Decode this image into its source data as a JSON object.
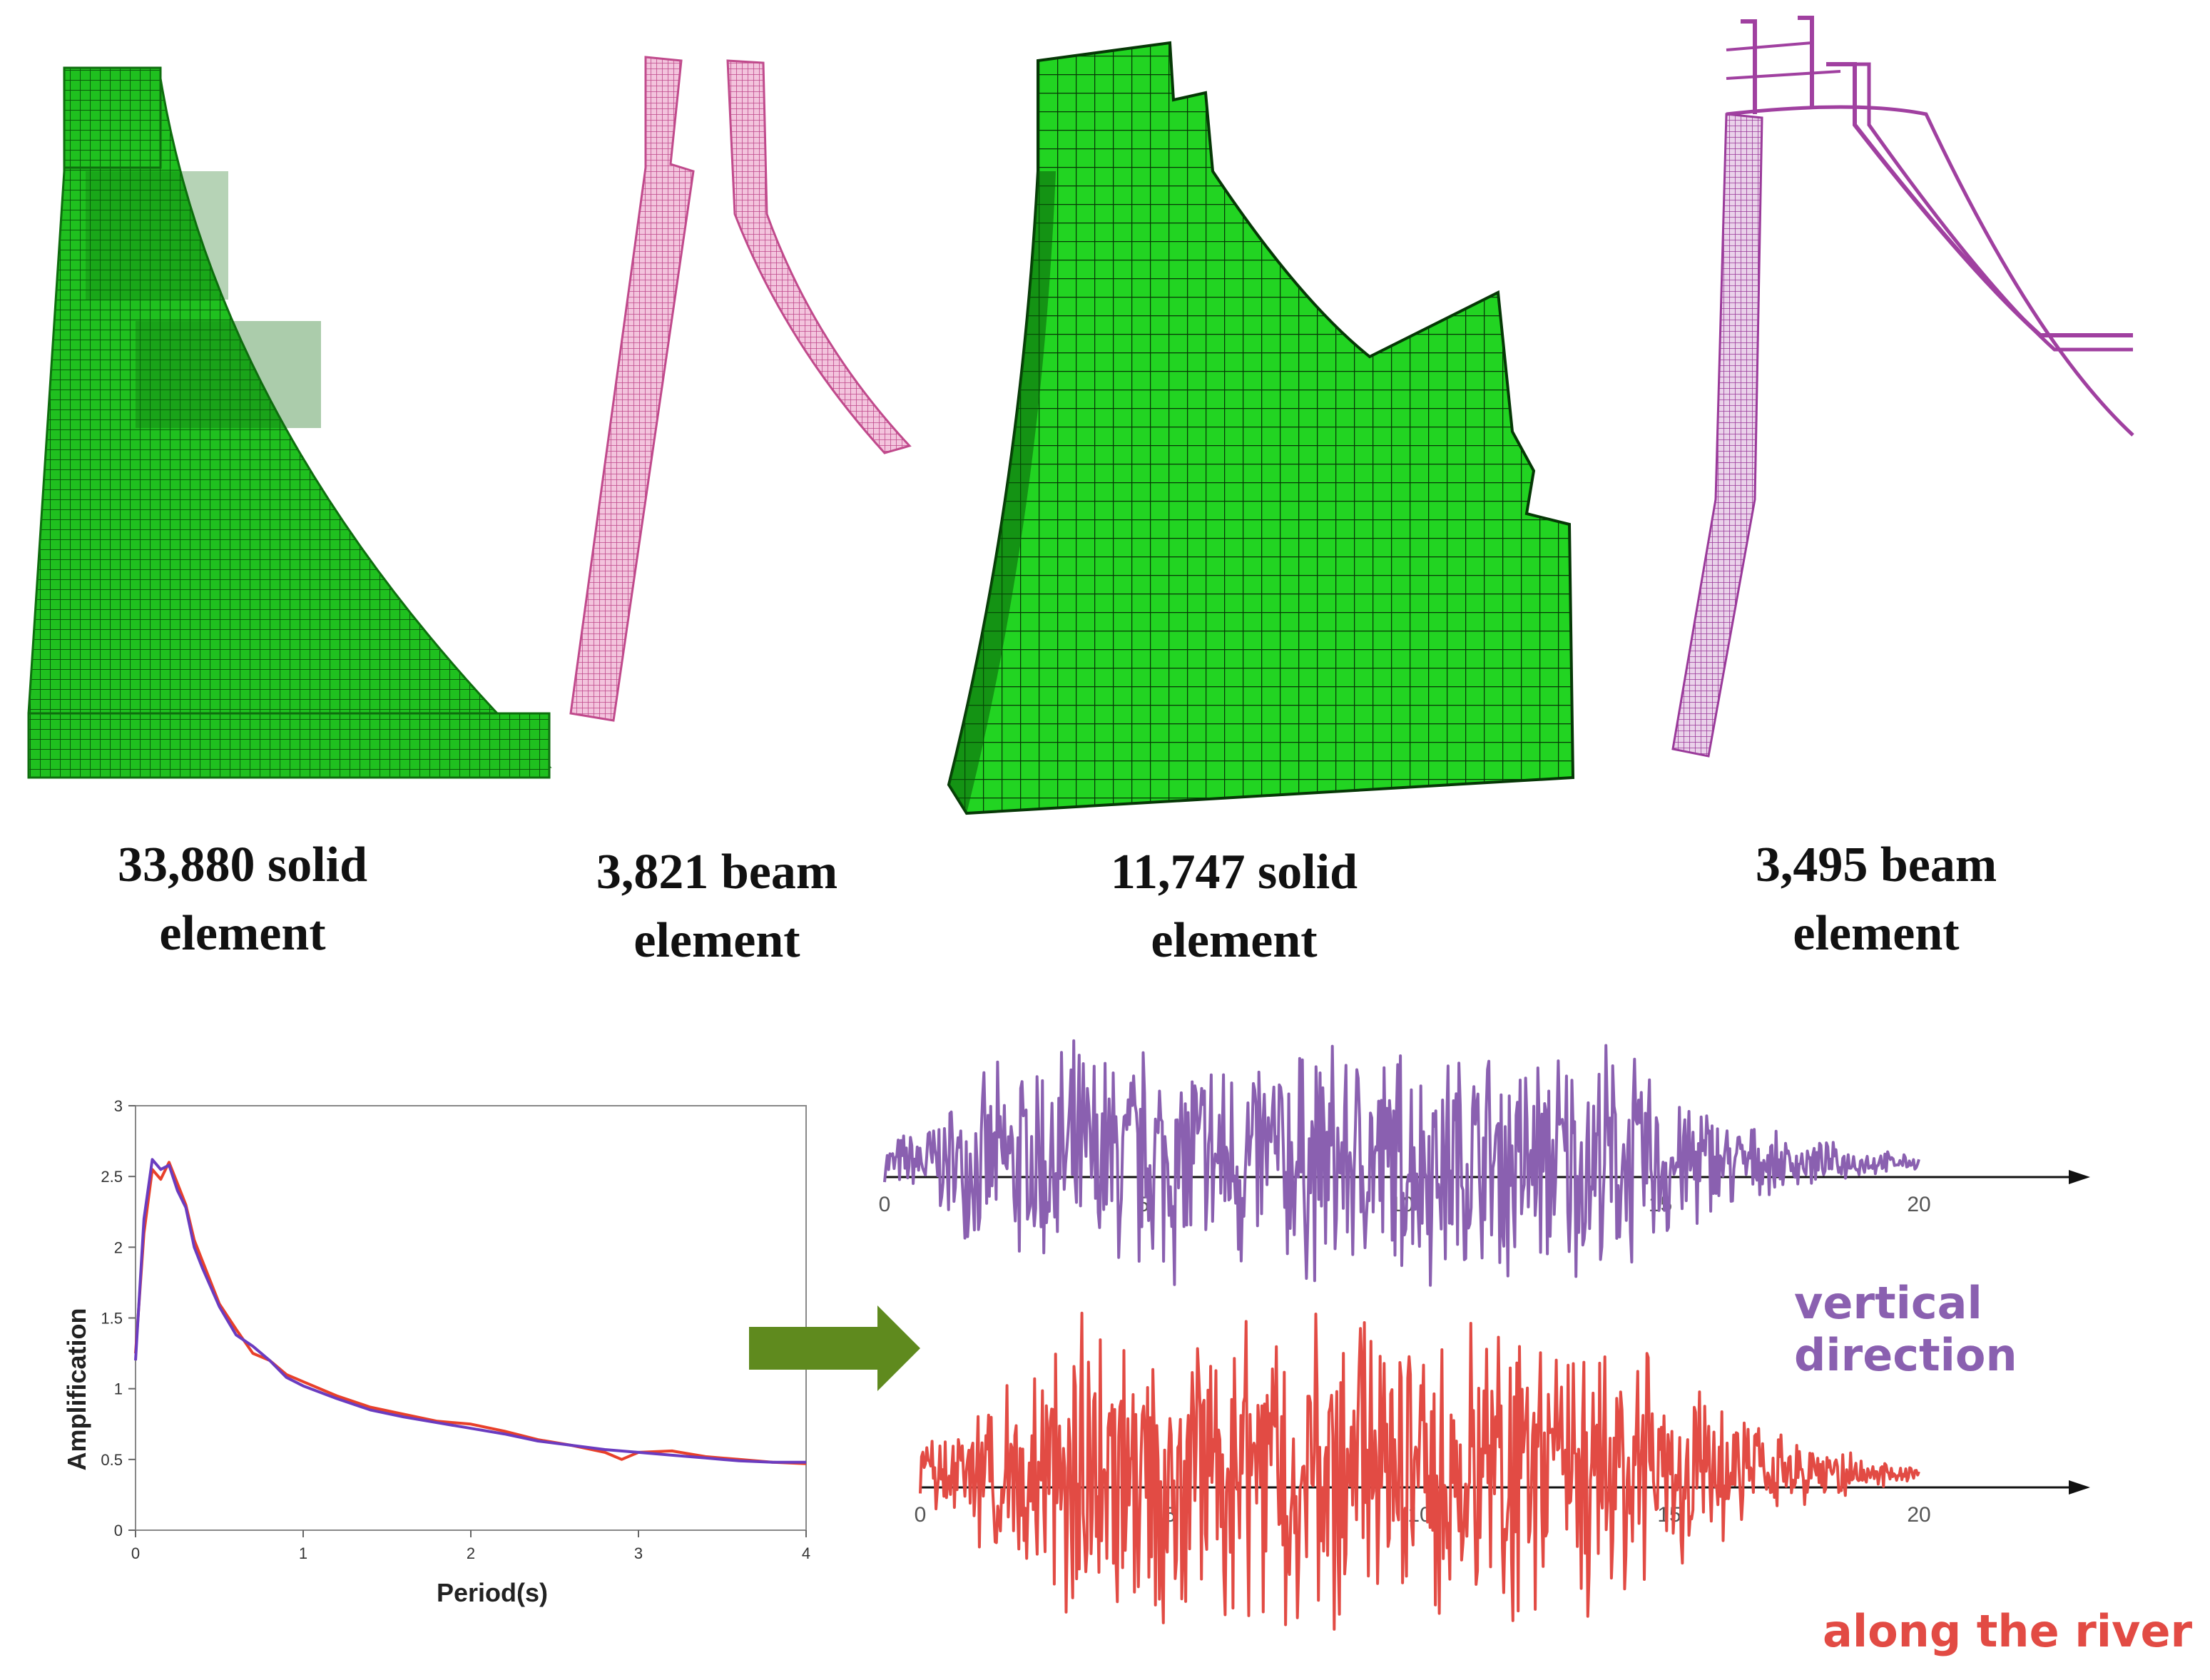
{
  "models": [
    {
      "line1": "33,880 solid",
      "line2": "element",
      "mesh_color": "#1fc01f",
      "kind": "solid"
    },
    {
      "line1": "3,821 beam",
      "line2": "element",
      "mesh_color": "#d05aa0",
      "kind": "beam"
    },
    {
      "line1": "11,747 solid",
      "line2": "element",
      "mesh_color": "#22d422",
      "kind": "solid"
    },
    {
      "line1": "3,495 beam",
      "line2": "element",
      "mesh_color": "#a040a0",
      "kind": "beam"
    }
  ],
  "spectrum": {
    "chart_data": {
      "type": "line",
      "xlabel": "Period(s)",
      "ylabel": "Amplification",
      "xlim": [
        0,
        4
      ],
      "ylim": [
        0,
        3
      ],
      "xticks": [
        "0",
        "1",
        "2",
        "3",
        "4"
      ],
      "yticks": [
        "0",
        "0.5",
        "1",
        "1.5",
        "2",
        "2.5",
        "3"
      ],
      "series": [
        {
          "color": "#e8402a",
          "x": [
            0.0,
            0.05,
            0.1,
            0.15,
            0.2,
            0.25,
            0.3,
            0.35,
            0.4,
            0.5,
            0.6,
            0.7,
            0.8,
            0.9,
            1.0,
            1.2,
            1.4,
            1.6,
            1.8,
            2.0,
            2.2,
            2.4,
            2.6,
            2.8,
            2.9,
            3.0,
            3.2,
            3.4,
            3.6,
            3.8,
            4.0
          ],
          "y": [
            1.25,
            2.1,
            2.55,
            2.48,
            2.6,
            2.45,
            2.3,
            2.05,
            1.9,
            1.6,
            1.42,
            1.25,
            1.2,
            1.1,
            1.05,
            0.95,
            0.87,
            0.82,
            0.77,
            0.75,
            0.7,
            0.64,
            0.6,
            0.55,
            0.5,
            0.55,
            0.56,
            0.52,
            0.5,
            0.48,
            0.47
          ]
        },
        {
          "color": "#6a3cc0",
          "x": [
            0.0,
            0.05,
            0.1,
            0.15,
            0.2,
            0.25,
            0.3,
            0.35,
            0.4,
            0.5,
            0.6,
            0.7,
            0.8,
            0.9,
            1.0,
            1.2,
            1.4,
            1.6,
            1.8,
            2.0,
            2.2,
            2.4,
            2.6,
            2.8,
            3.0,
            3.2,
            3.4,
            3.6,
            3.8,
            4.0
          ],
          "y": [
            1.2,
            2.2,
            2.62,
            2.55,
            2.58,
            2.4,
            2.28,
            2.0,
            1.85,
            1.58,
            1.38,
            1.3,
            1.2,
            1.08,
            1.02,
            0.93,
            0.85,
            0.8,
            0.76,
            0.72,
            0.68,
            0.63,
            0.6,
            0.57,
            0.55,
            0.53,
            0.51,
            0.49,
            0.48,
            0.48
          ]
        }
      ]
    }
  },
  "accelerograms": [
    {
      "name": "vertical direction",
      "color": "#8a60b0",
      "xticks": [
        "0",
        "5",
        "10",
        "15",
        "20"
      ],
      "xlim": [
        0,
        20
      ],
      "chart_data": {
        "type": "line",
        "duration_s": 20,
        "seed": 7
      }
    },
    {
      "name": "along the river",
      "color": "#e24b44",
      "xticks": [
        "0",
        "5",
        "10",
        "15",
        "20"
      ],
      "xlim": [
        0,
        20
      ],
      "chart_data": {
        "type": "line",
        "duration_s": 20,
        "seed": 13
      }
    }
  ],
  "arrow": {
    "color": "#5f8a1e"
  }
}
